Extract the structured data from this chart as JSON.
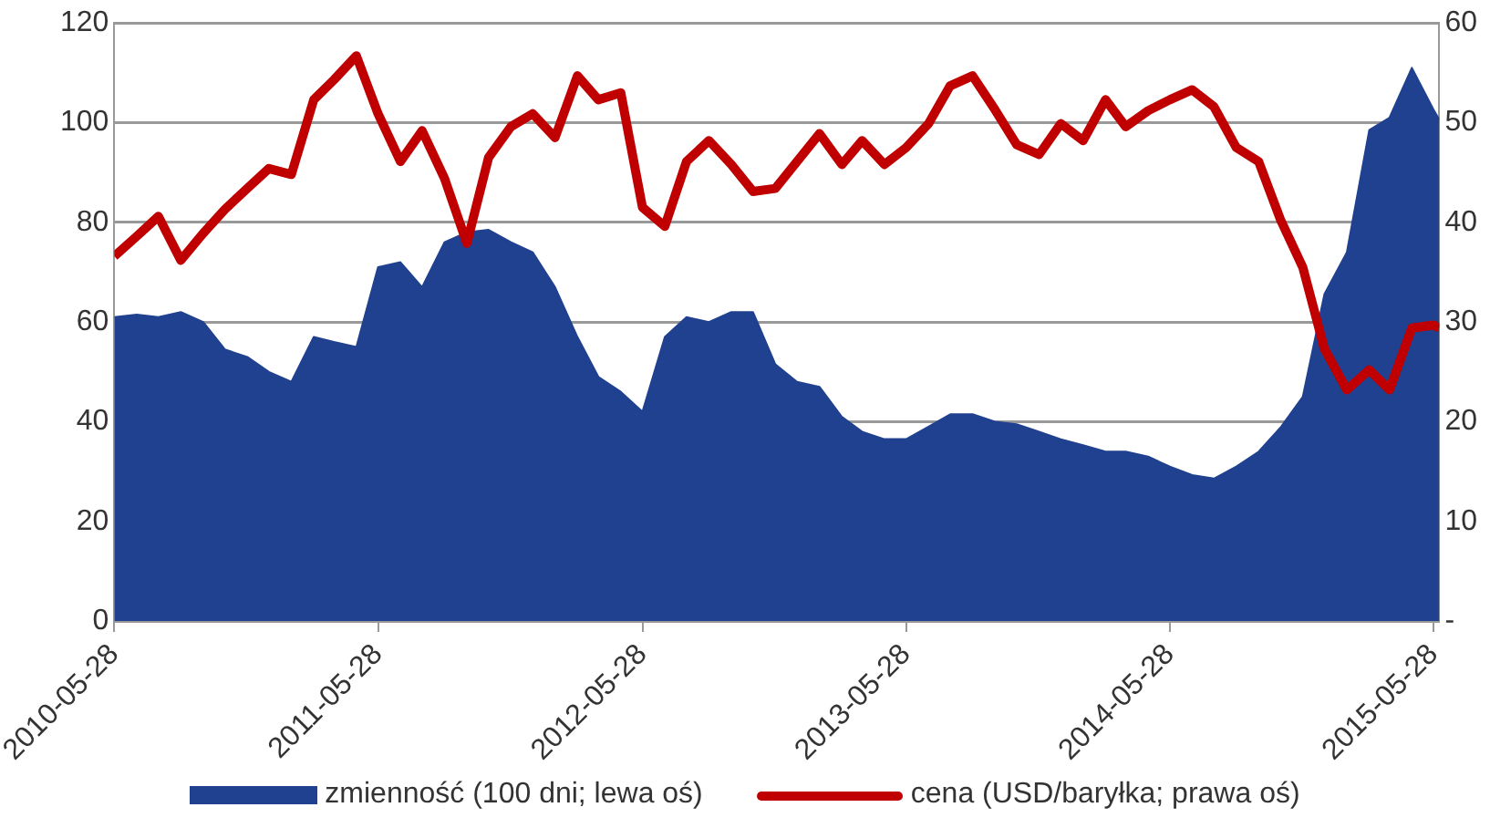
{
  "chart_data": {
    "type": "line",
    "x": [
      "2010-05-28",
      "2010-06-28",
      "2010-07-28",
      "2010-08-28",
      "2010-09-28",
      "2010-10-28",
      "2010-11-28",
      "2010-12-28",
      "2011-01-28",
      "2011-02-28",
      "2011-03-28",
      "2011-04-28",
      "2011-05-28",
      "2011-06-28",
      "2011-07-28",
      "2011-08-28",
      "2011-09-28",
      "2011-10-28",
      "2011-11-28",
      "2011-12-28",
      "2012-01-28",
      "2012-02-28",
      "2012-03-28",
      "2012-04-28",
      "2012-05-28",
      "2012-06-28",
      "2012-07-28",
      "2012-08-28",
      "2012-09-28",
      "2012-10-28",
      "2012-11-28",
      "2012-12-28",
      "2013-01-28",
      "2013-02-28",
      "2013-03-28",
      "2013-04-28",
      "2013-05-28",
      "2013-06-28",
      "2013-07-28",
      "2013-08-28",
      "2013-09-28",
      "2013-10-28",
      "2013-11-28",
      "2013-12-28",
      "2014-01-28",
      "2014-02-28",
      "2014-03-28",
      "2014-04-28",
      "2014-05-28",
      "2014-06-28",
      "2014-07-28",
      "2014-08-28",
      "2014-09-28",
      "2014-10-28",
      "2014-11-28",
      "2014-12-28",
      "2015-01-28",
      "2015-02-28",
      "2015-03-28",
      "2015-04-28",
      "2015-05-28",
      "2015-06-05"
    ],
    "series": [
      {
        "name": "zmienność (100 dni; lewa oś)",
        "type": "area",
        "axis": "y",
        "color": "#20418f",
        "values": [
          61,
          61.5,
          61,
          62,
          60,
          54.5,
          53,
          50,
          48,
          57,
          56,
          55,
          71,
          72,
          67,
          76,
          78,
          78.5,
          76,
          74,
          67,
          57,
          49,
          46,
          42,
          57,
          61,
          60,
          62,
          62,
          51.5,
          48,
          47,
          41,
          38,
          36.5,
          36.5,
          39,
          41.5,
          41.5,
          40,
          39.5,
          38,
          36.5,
          35.3,
          34,
          34,
          33,
          31,
          29.3,
          28.6,
          31,
          34,
          38.8,
          45,
          65.6,
          74,
          98.5,
          101,
          111,
          102.6,
          100.6
        ]
      },
      {
        "name": "cena (USD/baryłka; prawa oś)",
        "type": "line",
        "axis": "y2",
        "color": "#c00000",
        "values": [
          36.6,
          38.6,
          40.6,
          36.2,
          38.9,
          41.3,
          43.4,
          45.4,
          44.8,
          52.3,
          54.3,
          56.7,
          50.9,
          46.1,
          49.2,
          44.4,
          37.9,
          46.5,
          49.6,
          50.9,
          48.5,
          54.7,
          52.3,
          53,
          41.5,
          39.6,
          46.1,
          48.2,
          45.8,
          43.1,
          43.4,
          46.1,
          48.9,
          45.8,
          48.2,
          45.8,
          47.5,
          49.9,
          53.7,
          54.7,
          51.3,
          47.8,
          46.8,
          49.9,
          48.2,
          52.3,
          49.6,
          51.2,
          52.3,
          53.3,
          51.6,
          47.5,
          46.1,
          40.3,
          35.5,
          27.3,
          23.2,
          25.2,
          23.2,
          29.4,
          29.7,
          29.4
        ]
      }
    ],
    "xlim": [
      "2010-05-28",
      "2015-06-05"
    ],
    "xticks": [
      "2010-05-28",
      "2011-05-28",
      "2012-05-28",
      "2013-05-28",
      "2014-05-28",
      "2015-05-28"
    ],
    "ylim": [
      0,
      120
    ],
    "yticks": [
      0,
      20,
      40,
      60,
      80,
      100,
      120
    ],
    "y2lim": [
      0,
      60
    ],
    "y2ticks": [
      {
        "value": 0,
        "label": "-"
      },
      10,
      20,
      30,
      40,
      50,
      60
    ],
    "grid": "y",
    "legend": "bottom"
  }
}
